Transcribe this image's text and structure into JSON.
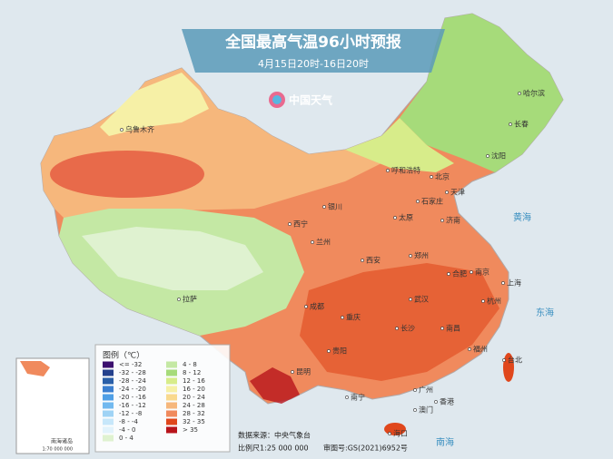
{
  "header": {
    "title": "全国最高气温96小时预报",
    "subtitle": "4月15日20时-16日20时",
    "logo": "中国天气"
  },
  "legend": {
    "title": "图例（℃）",
    "items": [
      {
        "label": "<= -32",
        "color": "#3b0f6f"
      },
      {
        "label": "-32 - -28",
        "color": "#24408c"
      },
      {
        "label": "-28 - -24",
        "color": "#2a5fa8"
      },
      {
        "label": "-24 - -20",
        "color": "#3b7fd0"
      },
      {
        "label": "-20 - -16",
        "color": "#4f9fe6"
      },
      {
        "label": "-16 - -12",
        "color": "#72b9ef"
      },
      {
        "label": "-12 - -8",
        "color": "#9fd3f5"
      },
      {
        "label": "-8 - -4",
        "color": "#c7e7fa"
      },
      {
        "label": "-4 - 0",
        "color": "#e2f3fc"
      },
      {
        "label": "0 - 4",
        "color": "#dff2d0"
      },
      {
        "label": "4 - 8",
        "color": "#c4e8a4"
      },
      {
        "label": "8 - 12",
        "color": "#a6db7a"
      },
      {
        "label": "12 - 16",
        "color": "#d7ec8a"
      },
      {
        "label": "16 - 20",
        "color": "#f6f0a6"
      },
      {
        "label": "20 - 24",
        "color": "#f9d98e"
      },
      {
        "label": "24 - 28",
        "color": "#f6b77c"
      },
      {
        "label": "28 - 32",
        "color": "#f08a5d"
      },
      {
        "label": "32 - 35",
        "color": "#e0471c"
      },
      {
        "label": "> 35",
        "color": "#b8141b"
      }
    ]
  },
  "cities": [
    "乌鲁木齐",
    "哈尔滨",
    "长春",
    "沈阳",
    "呼和浩特",
    "北京",
    "天津",
    "石家庄",
    "太原",
    "济南",
    "银川",
    "西宁",
    "兰州",
    "郑州",
    "西安",
    "合肥",
    "南京",
    "上海",
    "杭州",
    "武汉",
    "成都",
    "重庆",
    "拉萨",
    "长沙",
    "南昌",
    "福州",
    "贵阳",
    "昆明",
    "南宁",
    "广州",
    "香港",
    "澳门",
    "海口",
    "台北"
  ],
  "seas": [
    "黄海",
    "东海",
    "南海"
  ],
  "footer": {
    "source": "数据来源：中央气象台",
    "scale": "比例尺1:25 000 000",
    "approval": "审图号:GS(2021)6952号"
  },
  "inset": {
    "title": "南海诸岛",
    "scale": "1:70 000 000"
  }
}
